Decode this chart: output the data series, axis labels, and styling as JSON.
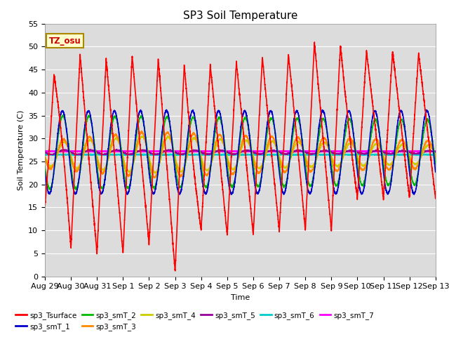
{
  "title": "SP3 Soil Temperature",
  "ylabel": "Soil Temperature (C)",
  "xlabel": "Time",
  "annotation": "TZ_osu",
  "ylim": [
    0,
    55
  ],
  "background_color": "#dcdcdc",
  "series": {
    "sp3_Tsurface": {
      "color": "#ff0000",
      "lw": 1.2
    },
    "sp3_smT_1": {
      "color": "#0000cc",
      "lw": 1.2
    },
    "sp3_smT_2": {
      "color": "#00bb00",
      "lw": 1.2
    },
    "sp3_smT_3": {
      "color": "#ff8800",
      "lw": 1.2
    },
    "sp3_smT_4": {
      "color": "#cccc00",
      "lw": 1.2
    },
    "sp3_smT_5": {
      "color": "#990099",
      "lw": 1.2
    },
    "sp3_smT_6": {
      "color": "#00cccc",
      "lw": 1.5
    },
    "sp3_smT_7": {
      "color": "#ff00ff",
      "lw": 1.8
    }
  },
  "xtick_labels": [
    "Aug 29",
    "Aug 30",
    "Aug 31",
    "Sep 1",
    "Sep 2",
    "Sep 3",
    "Sep 4",
    "Sep 5",
    "Sep 6",
    "Sep 7",
    "Sep 8",
    "Sep 9",
    "Sep 10",
    "Sep 11",
    "Sep 12",
    "Sep 13"
  ],
  "num_days": 15,
  "pts_per_day": 288
}
